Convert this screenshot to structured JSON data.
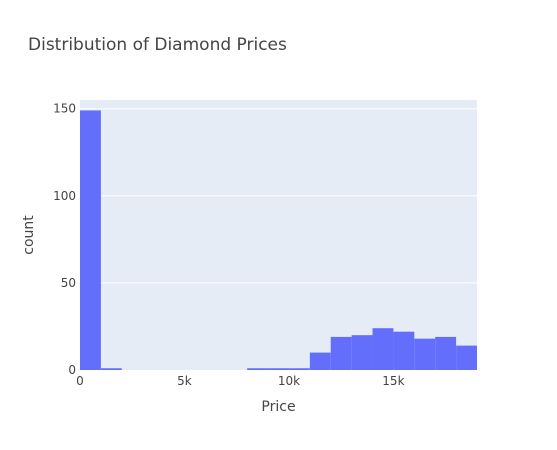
{
  "chart_data": {
    "type": "bar",
    "title": "Distribution of Diamond Prices",
    "xlabel": "Price",
    "ylabel": "count",
    "bin_width": 1000,
    "xlim": [
      0,
      19000
    ],
    "ylim": [
      0,
      155
    ],
    "x_ticks": [
      {
        "value": 0,
        "label": "0"
      },
      {
        "value": 5000,
        "label": "5k"
      },
      {
        "value": 10000,
        "label": "10k"
      },
      {
        "value": 15000,
        "label": "15k"
      }
    ],
    "y_ticks": [
      {
        "value": 0,
        "label": "0"
      },
      {
        "value": 50,
        "label": "50"
      },
      {
        "value": 100,
        "label": "100"
      },
      {
        "value": 150,
        "label": "150"
      }
    ],
    "bins": [
      {
        "start": 0,
        "end": 1000,
        "count": 149
      },
      {
        "start": 1000,
        "end": 2000,
        "count": 1
      },
      {
        "start": 8000,
        "end": 9000,
        "count": 1
      },
      {
        "start": 9000,
        "end": 10000,
        "count": 1
      },
      {
        "start": 10000,
        "end": 11000,
        "count": 1
      },
      {
        "start": 11000,
        "end": 12000,
        "count": 10
      },
      {
        "start": 12000,
        "end": 13000,
        "count": 19
      },
      {
        "start": 13000,
        "end": 14000,
        "count": 20
      },
      {
        "start": 14000,
        "end": 15000,
        "count": 24
      },
      {
        "start": 15000,
        "end": 16000,
        "count": 22
      },
      {
        "start": 16000,
        "end": 17000,
        "count": 18
      },
      {
        "start": 17000,
        "end": 18000,
        "count": 19
      },
      {
        "start": 18000,
        "end": 19000,
        "count": 14
      }
    ],
    "grid": true,
    "colors": {
      "bar": "#636efa",
      "plot_bg": "#e5ecf6",
      "grid": "#ffffff"
    }
  }
}
